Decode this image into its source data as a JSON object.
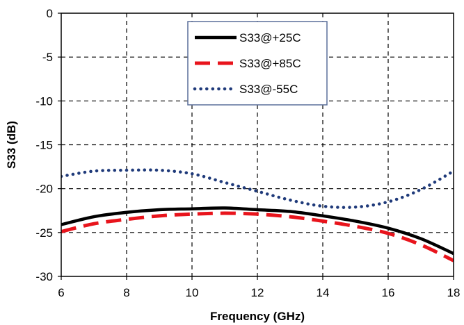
{
  "chart_data": {
    "type": "line",
    "title": "",
    "xlabel": "Frequency (GHz)",
    "ylabel": "S33 (dB)",
    "xlim": [
      6,
      18
    ],
    "ylim": [
      -30,
      0
    ],
    "x_ticks": [
      6,
      8,
      10,
      12,
      14,
      16,
      18
    ],
    "y_ticks": [
      0,
      -5,
      -10,
      -15,
      -20,
      -25,
      -30
    ],
    "grid": true,
    "grid_style": "dashed",
    "legend_position": "top-center",
    "series": [
      {
        "name": "S33@+25C",
        "color": "#000000",
        "line_style": "solid",
        "x": [
          6,
          7,
          8,
          9,
          10,
          11,
          12,
          13,
          14,
          15,
          16,
          17,
          18
        ],
        "y": [
          -24.1,
          -23.2,
          -22.7,
          -22.4,
          -22.3,
          -22.2,
          -22.4,
          -22.6,
          -23.1,
          -23.7,
          -24.5,
          -25.7,
          -27.4
        ]
      },
      {
        "name": "S33@+85C",
        "color": "#e8141c",
        "line_style": "dashed",
        "x": [
          6,
          7,
          8,
          9,
          10,
          11,
          12,
          13,
          14,
          15,
          16,
          17,
          18
        ],
        "y": [
          -24.9,
          -24.0,
          -23.5,
          -23.1,
          -22.9,
          -22.8,
          -22.9,
          -23.2,
          -23.7,
          -24.3,
          -25.1,
          -26.4,
          -28.2
        ]
      },
      {
        "name": "S33@-55C",
        "color": "#1f3a7a",
        "line_style": "dotted",
        "x": [
          6,
          7,
          8,
          9,
          10,
          11,
          12,
          13,
          14,
          15,
          16,
          17,
          18
        ],
        "y": [
          -18.6,
          -18.0,
          -17.9,
          -17.9,
          -18.3,
          -19.3,
          -20.3,
          -21.3,
          -22.0,
          -22.1,
          -21.5,
          -20.1,
          -18.0
        ]
      }
    ]
  }
}
